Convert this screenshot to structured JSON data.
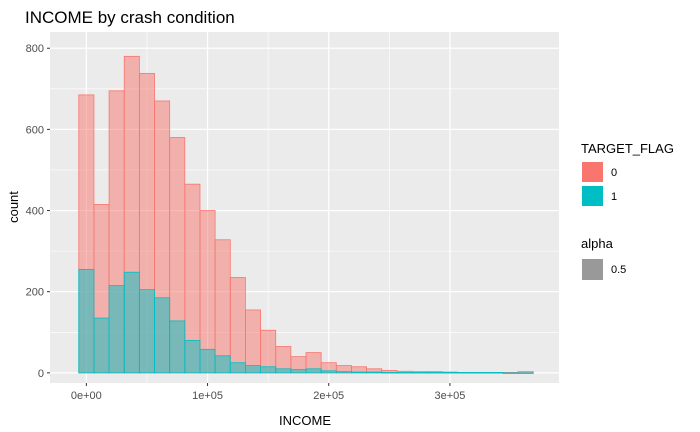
{
  "chart_data": {
    "type": "bar",
    "title": "INCOME by crash condition",
    "xlabel": "INCOME",
    "ylabel": "count",
    "xlim": [
      -30000,
      390000
    ],
    "ylim": [
      -25,
      840
    ],
    "grid": true,
    "legend_position": "right",
    "x_ticks": [
      {
        "value": 0,
        "label": "0e+00"
      },
      {
        "value": 100000,
        "label": "1e+05"
      },
      {
        "value": 200000,
        "label": "2e+05"
      },
      {
        "value": 300000,
        "label": "3e+05"
      }
    ],
    "y_ticks": [
      {
        "value": 0,
        "label": "0"
      },
      {
        "value": 200,
        "label": "200"
      },
      {
        "value": 400,
        "label": "400"
      },
      {
        "value": 600,
        "label": "600"
      },
      {
        "value": 800,
        "label": "800"
      }
    ],
    "bin_width": 12500,
    "bin_starts": [
      -6250,
      6250,
      18750,
      31250,
      43750,
      56250,
      68750,
      81250,
      93750,
      106250,
      118750,
      131250,
      143750,
      156250,
      168750,
      181250,
      193750,
      206250,
      218750,
      231250,
      243750,
      256250,
      268750,
      281250,
      293750,
      306250,
      318750,
      331250,
      343750,
      356250
    ],
    "series": [
      {
        "name": "0",
        "color": "#F8766D",
        "values": [
          685,
          415,
          695,
          780,
          738,
          670,
          580,
          465,
          400,
          328,
          235,
          155,
          105,
          65,
          40,
          50,
          25,
          18,
          15,
          10,
          6,
          4,
          3,
          3,
          2,
          1,
          1,
          1,
          1,
          3
        ]
      },
      {
        "name": "1",
        "color": "#00BFC4",
        "values": [
          255,
          135,
          215,
          248,
          205,
          185,
          128,
          80,
          58,
          42,
          25,
          18,
          15,
          10,
          8,
          10,
          5,
          3,
          2,
          2,
          1,
          1,
          1,
          1,
          1,
          1,
          1,
          1,
          0,
          0
        ]
      }
    ],
    "alpha": 0.5
  },
  "legend": {
    "fill_title": "TARGET_FLAG",
    "fill_items": [
      {
        "label": "0",
        "color": "#F8766D"
      },
      {
        "label": "1",
        "color": "#00BFC4"
      }
    ],
    "alpha_title": "alpha",
    "alpha_items": [
      {
        "label": "0.5",
        "color": "#999999"
      }
    ]
  }
}
